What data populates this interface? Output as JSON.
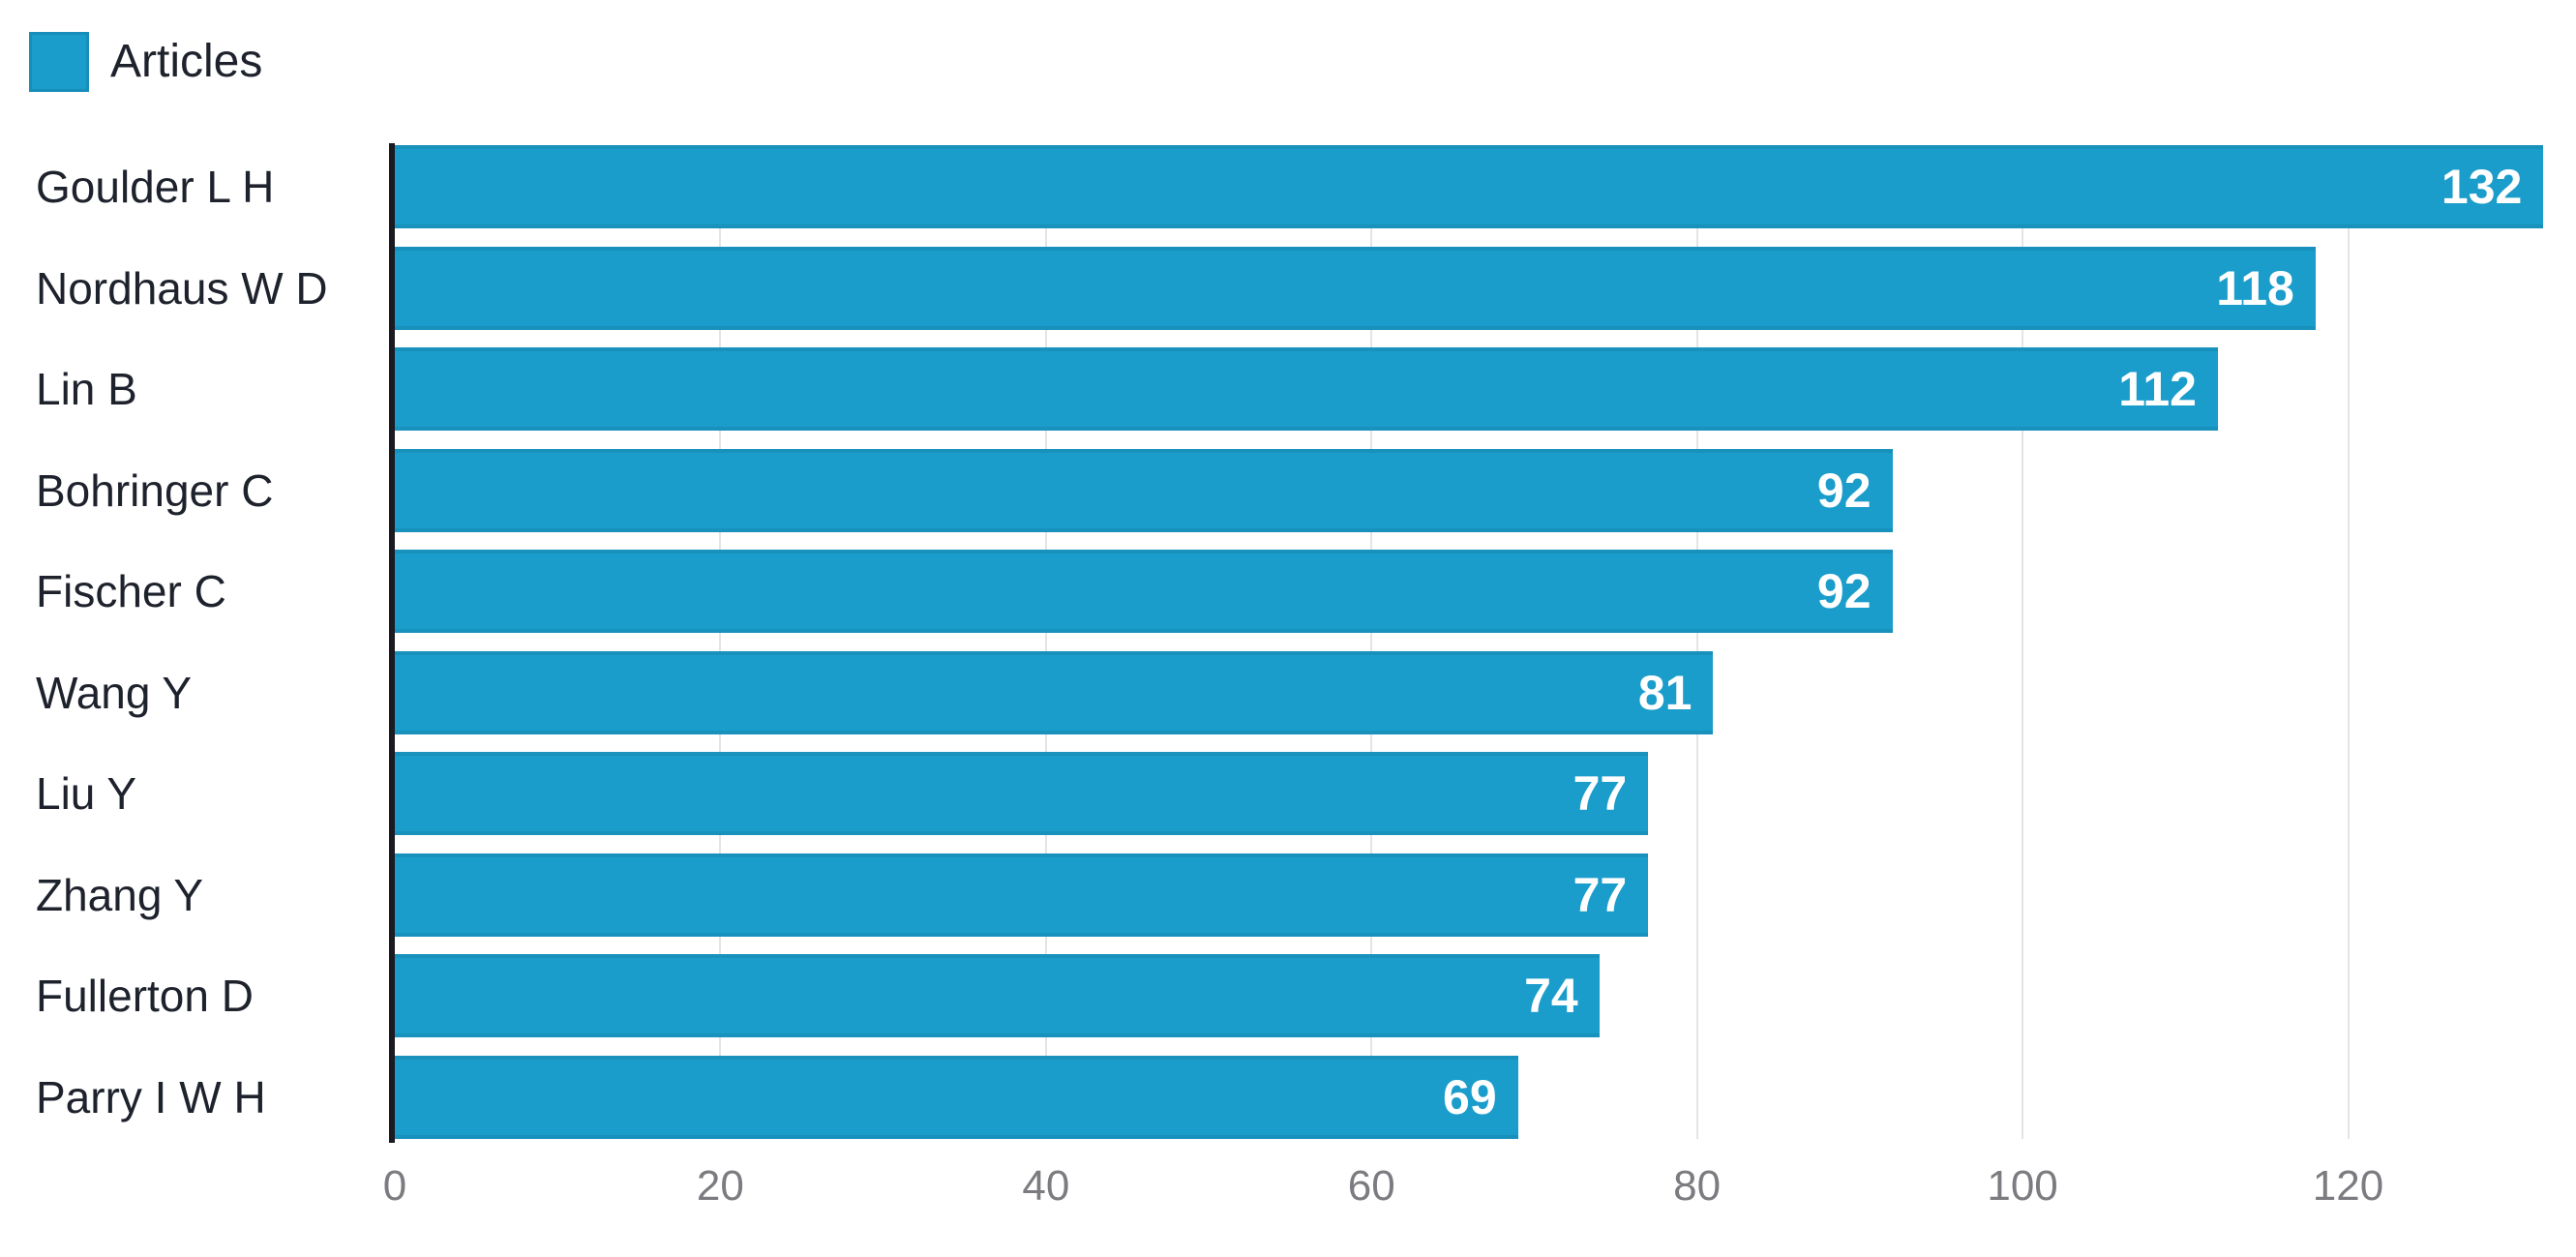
{
  "legend": {
    "label": "Articles"
  },
  "chart_data": {
    "type": "bar",
    "orientation": "horizontal",
    "title": "",
    "xlabel": "",
    "ylabel": "",
    "series_name": "Articles",
    "categories": [
      "Goulder L H",
      "Nordhaus W D",
      "Lin B",
      "Bohringer C",
      "Fischer C",
      "Wang Y",
      "Liu Y",
      "Zhang Y",
      "Fullerton D",
      "Parry I W H"
    ],
    "values": [
      132,
      118,
      112,
      92,
      92,
      81,
      77,
      77,
      74,
      69
    ],
    "x_ticks": [
      0,
      20,
      40,
      60,
      80,
      100,
      120
    ],
    "xlim": [
      0,
      134
    ],
    "grid": true,
    "legend_position": "top-left",
    "colors": {
      "bar": "#1b9dcb",
      "grid": "#e4e4e7",
      "axis": "#1a1a20",
      "category_text": "#1e222c",
      "tick_text": "#7b7b80",
      "value_text": "#ffffff"
    }
  }
}
